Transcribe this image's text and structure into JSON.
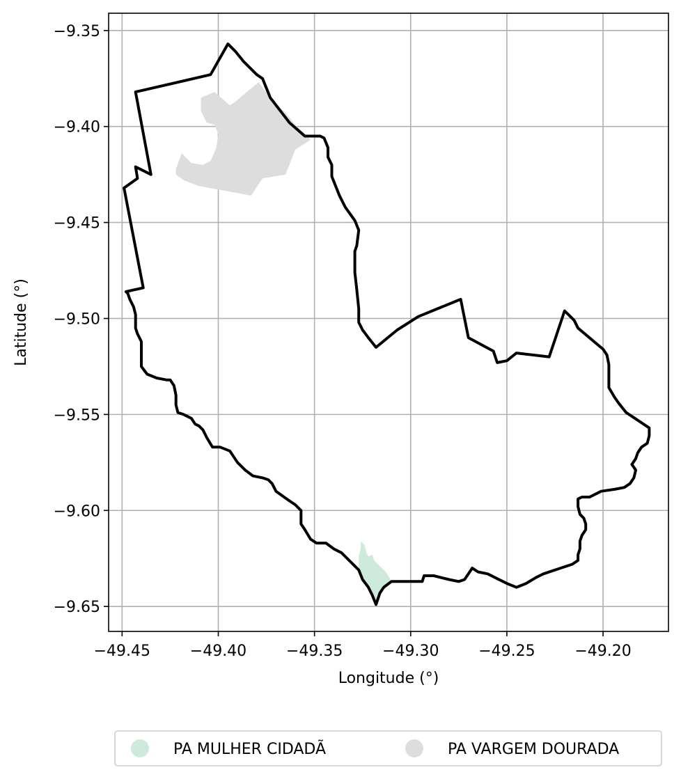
{
  "chart_data": {
    "type": "map",
    "title": "",
    "xlabel": "Longitude (°)",
    "ylabel": "Latitude (°)",
    "xlim": [
      -49.457,
      -49.166
    ],
    "ylim": [
      -9.663,
      -9.341
    ],
    "grid": true,
    "x_ticks": [
      {
        "value": -49.45,
        "label": "−49.45"
      },
      {
        "value": -49.4,
        "label": "−49.40"
      },
      {
        "value": -49.35,
        "label": "−49.35"
      },
      {
        "value": -49.3,
        "label": "−49.30"
      },
      {
        "value": -49.25,
        "label": "−49.25"
      },
      {
        "value": -49.2,
        "label": "−49.20"
      }
    ],
    "y_ticks": [
      {
        "value": -9.35,
        "label": "−9.35"
      },
      {
        "value": -9.4,
        "label": "−9.40"
      },
      {
        "value": -9.45,
        "label": "−9.45"
      },
      {
        "value": -9.5,
        "label": "−9.50"
      },
      {
        "value": -9.55,
        "label": "−9.55"
      },
      {
        "value": -9.6,
        "label": "−9.60"
      },
      {
        "value": -9.65,
        "label": "−9.65"
      }
    ],
    "legend": {
      "placement": "bottom-center",
      "entries": [
        {
          "label": "PA MULHER CIDADÃ",
          "color": "#cdeadc"
        },
        {
          "label": "PA VARGEM DOURADA",
          "color": "#dddddd"
        }
      ]
    },
    "boundary": {
      "color": "#000000",
      "points": [
        [
          -49.443,
          -9.382
        ],
        [
          -49.404,
          -9.373
        ],
        [
          -49.395,
          -9.357
        ],
        [
          -49.391,
          -9.361
        ],
        [
          -49.387,
          -9.366
        ],
        [
          -49.38,
          -9.373
        ],
        [
          -49.377,
          -9.375
        ],
        [
          -49.375,
          -9.38
        ],
        [
          -49.373,
          -9.385
        ],
        [
          -49.363,
          -9.398
        ],
        [
          -49.355,
          -9.405
        ],
        [
          -49.347,
          -9.405
        ],
        [
          -49.345,
          -9.406
        ],
        [
          -49.343,
          -9.411
        ],
        [
          -49.343,
          -9.416
        ],
        [
          -49.341,
          -9.42
        ],
        [
          -49.341,
          -9.426
        ],
        [
          -49.337,
          -9.436
        ],
        [
          -49.334,
          -9.442
        ],
        [
          -49.329,
          -9.449
        ],
        [
          -49.327,
          -9.454
        ],
        [
          -49.328,
          -9.462
        ],
        [
          -49.329,
          -9.465
        ],
        [
          -49.329,
          -9.476
        ],
        [
          -49.328,
          -9.485
        ],
        [
          -49.327,
          -9.495
        ],
        [
          -49.327,
          -9.502
        ],
        [
          -49.325,
          -9.506
        ],
        [
          -49.322,
          -9.51
        ],
        [
          -49.318,
          -9.515
        ],
        [
          -49.307,
          -9.506
        ],
        [
          -49.296,
          -9.499
        ],
        [
          -49.274,
          -9.49
        ],
        [
          -49.27,
          -9.51
        ],
        [
          -49.257,
          -9.517
        ],
        [
          -49.255,
          -9.523
        ],
        [
          -49.25,
          -9.522
        ],
        [
          -49.245,
          -9.518
        ],
        [
          -49.228,
          -9.52
        ],
        [
          -49.22,
          -9.496
        ],
        [
          -49.215,
          -9.501
        ],
        [
          -49.213,
          -9.505
        ],
        [
          -49.2,
          -9.516
        ],
        [
          -49.198,
          -9.519
        ],
        [
          -49.197,
          -9.524
        ],
        [
          -49.197,
          -9.536
        ],
        [
          -49.194,
          -9.541
        ],
        [
          -49.192,
          -9.544
        ],
        [
          -49.188,
          -9.549
        ],
        [
          -49.185,
          -9.551
        ],
        [
          -49.176,
          -9.557
        ],
        [
          -49.176,
          -9.561
        ],
        [
          -49.177,
          -9.565
        ],
        [
          -49.18,
          -9.567
        ],
        [
          -49.182,
          -9.57
        ],
        [
          -49.183,
          -9.573
        ],
        [
          -49.185,
          -9.576
        ],
        [
          -49.183,
          -9.579
        ],
        [
          -49.184,
          -9.583
        ],
        [
          -49.186,
          -9.586
        ],
        [
          -49.189,
          -9.588
        ],
        [
          -49.194,
          -9.589
        ],
        [
          -49.201,
          -9.59
        ],
        [
          -49.207,
          -9.593
        ],
        [
          -49.211,
          -9.593
        ],
        [
          -49.213,
          -9.594
        ],
        [
          -49.213,
          -9.598
        ],
        [
          -49.212,
          -9.602
        ],
        [
          -49.21,
          -9.604
        ],
        [
          -49.209,
          -9.607
        ],
        [
          -49.209,
          -9.61
        ],
        [
          -49.211,
          -9.613
        ],
        [
          -49.212,
          -9.616
        ],
        [
          -49.212,
          -9.62
        ],
        [
          -49.213,
          -9.623
        ],
        [
          -49.213,
          -9.626
        ],
        [
          -49.216,
          -9.628
        ],
        [
          -49.222,
          -9.63
        ],
        [
          -49.231,
          -9.633
        ],
        [
          -49.233,
          -9.634
        ],
        [
          -49.235,
          -9.635
        ],
        [
          -49.24,
          -9.638
        ],
        [
          -49.245,
          -9.64
        ],
        [
          -49.25,
          -9.638
        ],
        [
          -49.256,
          -9.635
        ],
        [
          -49.26,
          -9.633
        ],
        [
          -49.265,
          -9.632
        ],
        [
          -49.268,
          -9.63
        ],
        [
          -49.27,
          -9.633
        ],
        [
          -49.272,
          -9.636
        ],
        [
          -49.275,
          -9.637
        ],
        [
          -49.28,
          -9.636
        ],
        [
          -49.288,
          -9.634
        ],
        [
          -49.293,
          -9.634
        ],
        [
          -49.294,
          -9.637
        ],
        [
          -49.306,
          -9.637
        ],
        [
          -49.31,
          -9.637
        ],
        [
          -49.314,
          -9.64
        ],
        [
          -49.316,
          -9.643
        ],
        [
          -49.318,
          -9.649
        ],
        [
          -49.32,
          -9.644
        ],
        [
          -49.322,
          -9.64
        ],
        [
          -49.325,
          -9.636
        ],
        [
          -49.327,
          -9.631
        ],
        [
          -49.329,
          -9.629
        ],
        [
          -49.332,
          -9.626
        ],
        [
          -49.336,
          -9.622
        ],
        [
          -49.34,
          -9.62
        ],
        [
          -49.344,
          -9.617
        ],
        [
          -49.349,
          -9.617
        ],
        [
          -49.352,
          -9.615
        ],
        [
          -49.355,
          -9.61
        ],
        [
          -49.357,
          -9.607
        ],
        [
          -49.357,
          -9.6
        ],
        [
          -49.36,
          -9.597
        ],
        [
          -49.363,
          -9.595
        ],
        [
          -49.37,
          -9.59
        ],
        [
          -49.372,
          -9.586
        ],
        [
          -49.374,
          -9.584
        ],
        [
          -49.377,
          -9.583
        ],
        [
          -49.382,
          -9.582
        ],
        [
          -49.386,
          -9.579
        ],
        [
          -49.39,
          -9.575
        ],
        [
          -49.394,
          -9.569
        ],
        [
          -49.399,
          -9.567
        ],
        [
          -49.403,
          -9.567
        ],
        [
          -49.406,
          -9.562
        ],
        [
          -49.408,
          -9.558
        ],
        [
          -49.41,
          -9.556
        ],
        [
          -49.412,
          -9.555
        ],
        [
          -49.414,
          -9.552
        ],
        [
          -49.418,
          -9.55
        ],
        [
          -49.421,
          -9.549
        ],
        [
          -49.422,
          -9.545
        ],
        [
          -49.422,
          -9.54
        ],
        [
          -49.423,
          -9.535
        ],
        [
          -49.425,
          -9.532
        ],
        [
          -49.427,
          -9.532
        ],
        [
          -49.432,
          -9.531
        ],
        [
          -49.437,
          -9.529
        ],
        [
          -49.44,
          -9.525
        ],
        [
          -49.44,
          -9.521
        ],
        [
          -49.44,
          -9.516
        ],
        [
          -49.44,
          -9.512
        ],
        [
          -49.442,
          -9.508
        ],
        [
          -49.443,
          -9.505
        ],
        [
          -49.443,
          -9.502
        ],
        [
          -49.443,
          -9.498
        ],
        [
          -49.444,
          -9.494
        ],
        [
          -49.446,
          -9.49
        ],
        [
          -49.447,
          -9.487
        ],
        [
          -49.448,
          -9.486
        ],
        [
          -49.439,
          -9.484
        ],
        [
          -49.449,
          -9.432
        ],
        [
          -49.442,
          -9.427
        ],
        [
          -49.443,
          -9.421
        ],
        [
          -49.435,
          -9.425
        ],
        [
          -49.443,
          -9.382
        ]
      ]
    },
    "areas": [
      {
        "name": "PA VARGEM DOURADA",
        "color": "#dddddd",
        "points": [
          [
            -49.409,
            -9.385
          ],
          [
            -49.402,
            -9.382
          ],
          [
            -49.394,
            -9.389
          ],
          [
            -49.391,
            -9.387
          ],
          [
            -49.384,
            -9.381
          ],
          [
            -49.379,
            -9.377
          ],
          [
            -49.373,
            -9.385
          ],
          [
            -49.37,
            -9.388
          ],
          [
            -49.365,
            -9.393
          ],
          [
            -49.36,
            -9.399
          ],
          [
            -49.355,
            -9.404
          ],
          [
            -49.352,
            -9.407
          ],
          [
            -49.36,
            -9.412
          ],
          [
            -49.365,
            -9.425
          ],
          [
            -49.377,
            -9.427
          ],
          [
            -49.383,
            -9.436
          ],
          [
            -49.399,
            -9.433
          ],
          [
            -49.41,
            -9.431
          ],
          [
            -49.418,
            -9.428
          ],
          [
            -49.422,
            -9.425
          ],
          [
            -49.422,
            -9.422
          ],
          [
            -49.419,
            -9.414
          ],
          [
            -49.414,
            -9.419
          ],
          [
            -49.408,
            -9.42
          ],
          [
            -49.404,
            -9.418
          ],
          [
            -49.401,
            -9.411
          ],
          [
            -49.4,
            -9.404
          ],
          [
            -49.402,
            -9.399
          ],
          [
            -49.406,
            -9.398
          ],
          [
            -49.409,
            -9.392
          ]
        ]
      },
      {
        "name": "PA MULHER CIDADÃ",
        "color": "#cdeadc",
        "points": [
          [
            -49.326,
            -9.616
          ],
          [
            -49.324,
            -9.618
          ],
          [
            -49.323,
            -9.622
          ],
          [
            -49.322,
            -9.624
          ],
          [
            -49.32,
            -9.623
          ],
          [
            -49.319,
            -9.626
          ],
          [
            -49.317,
            -9.628
          ],
          [
            -49.315,
            -9.63
          ],
          [
            -49.313,
            -9.632
          ],
          [
            -49.311,
            -9.635
          ],
          [
            -49.31,
            -9.637
          ],
          [
            -49.314,
            -9.64
          ],
          [
            -49.316,
            -9.643
          ],
          [
            -49.318,
            -9.648
          ],
          [
            -49.32,
            -9.644
          ],
          [
            -49.322,
            -9.64
          ],
          [
            -49.325,
            -9.636
          ],
          [
            -49.327,
            -9.631
          ],
          [
            -49.327,
            -9.624
          ],
          [
            -49.326,
            -9.62
          ]
        ]
      }
    ]
  }
}
